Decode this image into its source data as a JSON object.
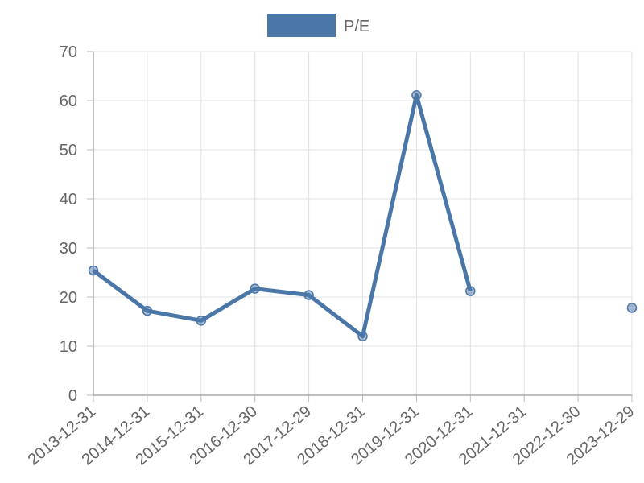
{
  "chart_data": {
    "type": "line",
    "categories": [
      "2013-12-31",
      "2014-12-31",
      "2015-12-31",
      "2016-12-30",
      "2017-12-29",
      "2018-12-31",
      "2019-12-31",
      "2020-12-31",
      "2021-12-31",
      "2022-12-30",
      "2023-12-29"
    ],
    "series": [
      {
        "name": "P/E",
        "color": "#4a76a8",
        "values": [
          25.4,
          17.2,
          15.2,
          21.7,
          20.4,
          12.0,
          61.1,
          21.2,
          null,
          null,
          17.8
        ]
      }
    ],
    "ylim": [
      0,
      70
    ],
    "yticks": [
      0,
      10,
      20,
      30,
      40,
      50,
      60,
      70
    ],
    "grid": true,
    "legend": "top"
  }
}
